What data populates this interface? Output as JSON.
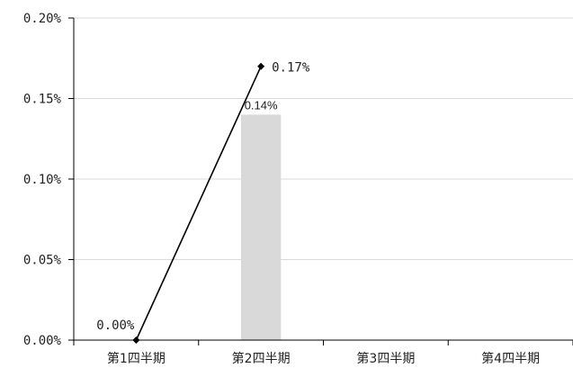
{
  "chart_data": {
    "type": "bar",
    "categories": [
      "第1四半期",
      "第2四半期",
      "第3四半期",
      "第4四半期"
    ],
    "series": [
      {
        "type": "bar",
        "values": [
          null,
          0.14,
          null,
          null
        ],
        "labels": [
          "",
          "0.14%",
          "",
          ""
        ],
        "color": "#d9d9d9"
      },
      {
        "type": "line",
        "values": [
          0.0,
          0.17,
          null,
          null
        ],
        "labels": [
          "0.00%",
          "0.17%",
          "",
          ""
        ],
        "color": "#000000"
      }
    ],
    "yticks": [
      0.0,
      0.05,
      0.1,
      0.15,
      0.2
    ],
    "ytick_labels": [
      "0.00%",
      "0.05%",
      "0.10%",
      "0.15%",
      "0.20%"
    ],
    "ylim": [
      0,
      0.2
    ],
    "grid": true,
    "legend": "none"
  }
}
